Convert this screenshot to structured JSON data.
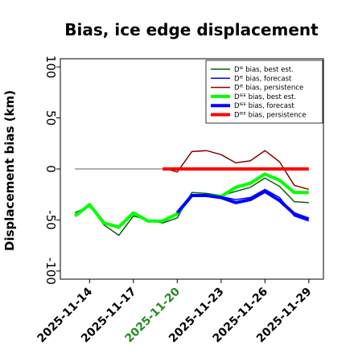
{
  "chart_data": {
    "type": "line",
    "title": "Bias, ice edge displacement",
    "ylabel": "Displacement bias (km)",
    "xlabel": "",
    "ylim": [
      -108,
      108
    ],
    "xlim": [
      "2025-11-12",
      "2025-11-30"
    ],
    "yticks": [
      100,
      50,
      0,
      -50,
      -100
    ],
    "xticks": [
      {
        "date": "2025-11-14",
        "label": "2025-11-14",
        "color": "#000000"
      },
      {
        "date": "2025-11-17",
        "label": "2025-11-17",
        "color": "#000000"
      },
      {
        "date": "2025-11-20",
        "label": "2025-11-20",
        "color": "#228b22"
      },
      {
        "date": "2025-11-23",
        "label": "2025-11-23",
        "color": "#000000"
      },
      {
        "date": "2025-11-26",
        "label": "2025-11-26",
        "color": "#000000"
      },
      {
        "date": "2025-11-29",
        "label": "2025-11-29",
        "color": "#000000"
      }
    ],
    "grid": false,
    "legend_position": "top-right",
    "zero_line": {
      "from": "2025-11-13",
      "to": "2025-11-19",
      "color": "#808080"
    },
    "series": [
      {
        "name": "Dᴵᴱ bias, best est.",
        "color": "#006400",
        "width": 1.5,
        "points": [
          [
            "2025-11-13",
            -43
          ],
          [
            "2025-11-14",
            -36
          ],
          [
            "2025-11-15",
            -55
          ],
          [
            "2025-11-16",
            -65
          ],
          [
            "2025-11-17",
            -46
          ],
          [
            "2025-11-18",
            -50
          ],
          [
            "2025-11-19",
            -53
          ],
          [
            "2025-11-20",
            -48
          ],
          [
            "2025-11-21",
            -23
          ],
          [
            "2025-11-22",
            -24
          ],
          [
            "2025-11-23",
            -26
          ],
          [
            "2025-11-24",
            -22
          ],
          [
            "2025-11-25",
            -18
          ],
          [
            "2025-11-26",
            -9
          ],
          [
            "2025-11-27",
            -17
          ],
          [
            "2025-11-28",
            -32
          ],
          [
            "2025-11-29",
            -33
          ]
        ]
      },
      {
        "name": "Dᴵᴱ bias, forecast",
        "color": "#0000ff",
        "width": 1.5,
        "points": [
          [
            "2025-11-20",
            -45
          ],
          [
            "2025-11-21",
            -25
          ],
          [
            "2025-11-22",
            -26
          ],
          [
            "2025-11-23",
            -27
          ],
          [
            "2025-11-24",
            -30
          ],
          [
            "2025-11-25",
            -28
          ],
          [
            "2025-11-26",
            -20
          ],
          [
            "2025-11-27",
            -28
          ],
          [
            "2025-11-28",
            -46
          ],
          [
            "2025-11-29",
            -51
          ]
        ]
      },
      {
        "name": "Dᴵᴱ bias, persistence",
        "color": "#8b0000",
        "width": 1.5,
        "points": [
          [
            "2025-11-19",
            1
          ],
          [
            "2025-11-20",
            -3
          ],
          [
            "2025-11-21",
            17
          ],
          [
            "2025-11-22",
            18
          ],
          [
            "2025-11-23",
            14
          ],
          [
            "2025-11-24",
            6
          ],
          [
            "2025-11-25",
            8
          ],
          [
            "2025-11-26",
            18
          ],
          [
            "2025-11-27",
            7
          ],
          [
            "2025-11-28",
            -16
          ],
          [
            "2025-11-29",
            -20
          ]
        ]
      },
      {
        "name": "Dᴵᴱᴱ bias, best est.",
        "color": "#00ff00",
        "width": 4,
        "points": [
          [
            "2025-11-13",
            -46
          ],
          [
            "2025-11-14",
            -35
          ],
          [
            "2025-11-15",
            -53
          ],
          [
            "2025-11-16",
            -57
          ],
          [
            "2025-11-17",
            -43
          ],
          [
            "2025-11-18",
            -51
          ],
          [
            "2025-11-19",
            -51
          ],
          [
            "2025-11-20",
            -44
          ],
          [
            "2025-11-21",
            -26
          ],
          [
            "2025-11-22",
            -26
          ],
          [
            "2025-11-23",
            -27
          ],
          [
            "2025-11-24",
            -18
          ],
          [
            "2025-11-25",
            -14
          ],
          [
            "2025-11-26",
            -5
          ],
          [
            "2025-11-27",
            -11
          ],
          [
            "2025-11-28",
            -23
          ],
          [
            "2025-11-29",
            -23
          ]
        ]
      },
      {
        "name": "Dᴵᴱᴱ bias, forecast",
        "color": "#0000ff",
        "width": 4,
        "points": [
          [
            "2025-11-20",
            -43
          ],
          [
            "2025-11-21",
            -26
          ],
          [
            "2025-11-22",
            -26
          ],
          [
            "2025-11-23",
            -28
          ],
          [
            "2025-11-24",
            -33
          ],
          [
            "2025-11-25",
            -30
          ],
          [
            "2025-11-26",
            -22
          ],
          [
            "2025-11-27",
            -31
          ],
          [
            "2025-11-28",
            -44
          ],
          [
            "2025-11-29",
            -49
          ]
        ]
      },
      {
        "name": "Dᴵᴱᴱ bias, persistence",
        "color": "#ff0000",
        "width": 4,
        "points": [
          [
            "2025-11-19",
            0
          ],
          [
            "2025-11-20",
            0
          ],
          [
            "2025-11-21",
            0
          ],
          [
            "2025-11-22",
            0
          ],
          [
            "2025-11-23",
            0
          ],
          [
            "2025-11-24",
            0
          ],
          [
            "2025-11-25",
            0
          ],
          [
            "2025-11-26",
            0
          ],
          [
            "2025-11-27",
            0
          ],
          [
            "2025-11-28",
            0
          ],
          [
            "2025-11-29",
            0
          ]
        ]
      }
    ]
  }
}
